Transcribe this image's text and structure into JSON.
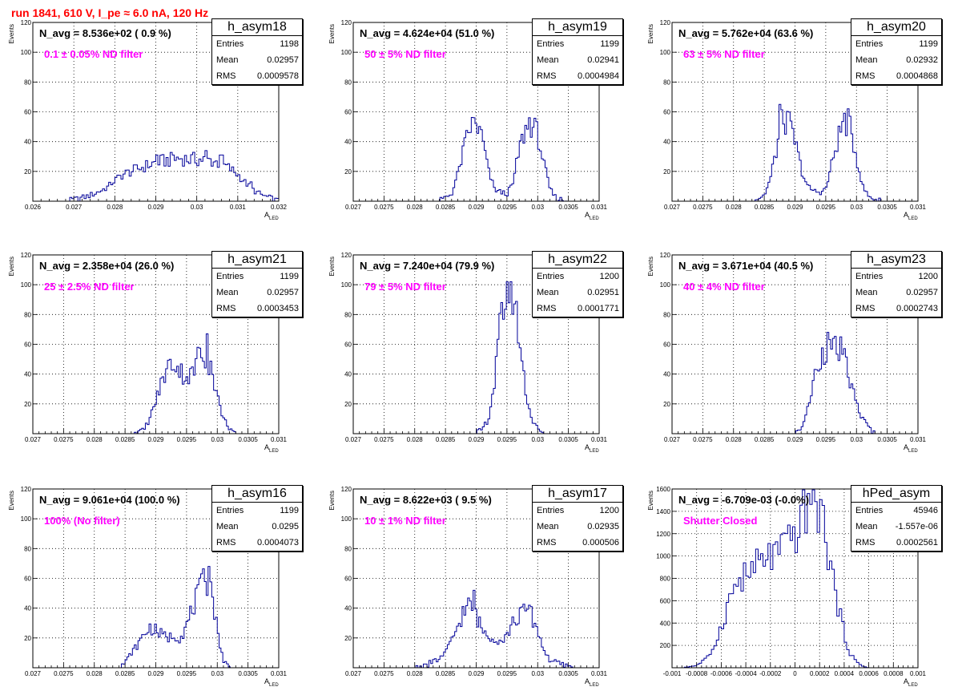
{
  "title": "run 1841,   610 V, I_pe ≈ 6.0 nA, 120 Hz",
  "axis": {
    "ylabel": "Events",
    "xlabel": "A",
    "xlabel_sub": "LED"
  },
  "stat_labels": {
    "entries": "Entries",
    "mean": "Mean",
    "rms": "RMS"
  },
  "colors": {
    "title": "#ff0000",
    "histogram": "#000099",
    "annotation": "#ff00ff",
    "grid": "#000000"
  },
  "panels": [
    {
      "name": "h_asym18",
      "navg": "N_avg = 8.536e+02 ( 0.9 %)",
      "filter": "0.1 ± 0.05% ND filter",
      "entries": "1198",
      "mean": "0.02957",
      "rms": "0.0009578"
    },
    {
      "name": "h_asym19",
      "navg": "N_avg = 4.624e+04 (51.0 %)",
      "filter": "50 ± 5% ND filter",
      "entries": "1199",
      "mean": "0.02941",
      "rms": "0.0004984"
    },
    {
      "name": "h_asym20",
      "navg": "N_avg = 5.762e+04 (63.6 %)",
      "filter": "63 ± 5% ND filter",
      "entries": "1199",
      "mean": "0.02932",
      "rms": "0.0004868"
    },
    {
      "name": "h_asym21",
      "navg": "N_avg = 2.358e+04 (26.0 %)",
      "filter": "25 ± 2.5% ND filter",
      "entries": "1199",
      "mean": "0.02957",
      "rms": "0.0003453"
    },
    {
      "name": "h_asym22",
      "navg": "N_avg = 7.240e+04 (79.9 %)",
      "filter": "79 ± 5% ND filter",
      "entries": "1200",
      "mean": "0.02951",
      "rms": "0.0001771"
    },
    {
      "name": "h_asym23",
      "navg": "N_avg = 3.671e+04 (40.5 %)",
      "filter": "40 ± 4% ND filter",
      "entries": "1200",
      "mean": "0.02957",
      "rms": "0.0002743"
    },
    {
      "name": "h_asym16",
      "navg": "N_avg = 9.061e+04 (100.0 %)",
      "filter": "100% (No filter)",
      "entries": "1199",
      "mean": "0.0295",
      "rms": "0.0004073"
    },
    {
      "name": "h_asym17",
      "navg": "N_avg = 8.622e+03 ( 9.5 %)",
      "filter": "10 ± 1% ND filter",
      "entries": "1200",
      "mean": "0.02935",
      "rms": "0.000506"
    },
    {
      "name": "hPed_asym",
      "navg": "N_avg = -6.709e-03 (-0.0%)",
      "filter": "Shutter Closed",
      "entries": "45946",
      "mean": "-1.557e-06",
      "rms": "0.0002561"
    }
  ],
  "chart_data": [
    {
      "type": "histogram",
      "name": "h_asym18",
      "xlim": [
        0.026,
        0.032
      ],
      "ylim": [
        0,
        120
      ],
      "xticks": [
        "0.026",
        "0.027",
        "0.028",
        "0.029",
        "0.03",
        "0.031",
        "0.032"
      ],
      "xtick_values": [
        0.026,
        0.027,
        0.028,
        0.029,
        0.03,
        0.031,
        0.032
      ],
      "yticks": [
        "20",
        "40",
        "60",
        "80",
        "100",
        "120"
      ],
      "ytick_values": [
        20,
        40,
        60,
        80,
        100,
        120
      ],
      "bin_width": 5e-05,
      "points": [
        [
          0.0268,
          0
        ],
        [
          0.027,
          1
        ],
        [
          0.0273,
          3
        ],
        [
          0.0275,
          5
        ],
        [
          0.0278,
          9
        ],
        [
          0.028,
          14
        ],
        [
          0.0282,
          18
        ],
        [
          0.0284,
          20
        ],
        [
          0.0286,
          22
        ],
        [
          0.0288,
          24
        ],
        [
          0.029,
          26
        ],
        [
          0.0292,
          27
        ],
        [
          0.0294,
          28
        ],
        [
          0.0296,
          29
        ],
        [
          0.0298,
          28
        ],
        [
          0.03,
          28
        ],
        [
          0.0302,
          28
        ],
        [
          0.0304,
          27
        ],
        [
          0.0306,
          25
        ],
        [
          0.0308,
          22
        ],
        [
          0.031,
          18
        ],
        [
          0.0312,
          12
        ],
        [
          0.0314,
          7
        ],
        [
          0.0316,
          4
        ],
        [
          0.0318,
          2
        ],
        [
          0.032,
          0
        ]
      ],
      "spikes": {
        "0.0302": 34,
        "0.0294": 31,
        "0.0290": 31,
        "0.0306": 31,
        "0.0313": 13
      }
    },
    {
      "type": "histogram",
      "name": "h_asym19",
      "xlim": [
        0.027,
        0.031
      ],
      "ylim": [
        0,
        120
      ],
      "xticks": [
        "0.027",
        "0.0275",
        "0.028",
        "0.0285",
        "0.029",
        "0.0295",
        "0.03",
        "0.0305",
        "0.031"
      ],
      "xtick_values": [
        0.027,
        0.0275,
        0.028,
        0.0285,
        0.029,
        0.0295,
        0.03,
        0.0305,
        0.031
      ],
      "yticks": [
        "20",
        "40",
        "60",
        "80",
        "100",
        "120"
      ],
      "ytick_values": [
        20,
        40,
        60,
        80,
        100,
        120
      ],
      "bin_width": 3e-05,
      "points": [
        [
          0.0284,
          0
        ],
        [
          0.0286,
          5
        ],
        [
          0.0287,
          18
        ],
        [
          0.0288,
          35
        ],
        [
          0.0289,
          50
        ],
        [
          0.029,
          52
        ],
        [
          0.0291,
          42
        ],
        [
          0.0292,
          20
        ],
        [
          0.0293,
          8
        ],
        [
          0.0294,
          6
        ],
        [
          0.0295,
          5
        ],
        [
          0.0296,
          12
        ],
        [
          0.0297,
          35
        ],
        [
          0.0298,
          48
        ],
        [
          0.0299,
          52
        ],
        [
          0.03,
          45
        ],
        [
          0.0301,
          25
        ],
        [
          0.0302,
          8
        ],
        [
          0.0303,
          2
        ],
        [
          0.0305,
          0
        ]
      ],
      "spikes": {
        "0.02895": 56,
        "0.02985": 56
      }
    },
    {
      "type": "histogram",
      "name": "h_asym20",
      "xlim": [
        0.027,
        0.031
      ],
      "ylim": [
        0,
        120
      ],
      "xticks": [
        "0.027",
        "0.0275",
        "0.028",
        "0.0285",
        "0.029",
        "0.0295",
        "0.03",
        "0.0305",
        "0.031"
      ],
      "xtick_values": [
        0.027,
        0.0275,
        0.028,
        0.0285,
        0.029,
        0.0295,
        0.03,
        0.0305,
        0.031
      ],
      "yticks": [
        "20",
        "40",
        "60",
        "80",
        "100",
        "120"
      ],
      "ytick_values": [
        20,
        40,
        60,
        80,
        100,
        120
      ],
      "bin_width": 3e-05,
      "points": [
        [
          0.0283,
          0
        ],
        [
          0.0285,
          4
        ],
        [
          0.0286,
          15
        ],
        [
          0.0287,
          35
        ],
        [
          0.0288,
          55
        ],
        [
          0.0289,
          52
        ],
        [
          0.029,
          40
        ],
        [
          0.0291,
          22
        ],
        [
          0.0292,
          10
        ],
        [
          0.0293,
          7
        ],
        [
          0.0294,
          6
        ],
        [
          0.0295,
          8
        ],
        [
          0.0296,
          25
        ],
        [
          0.0297,
          42
        ],
        [
          0.0298,
          55
        ],
        [
          0.0299,
          48
        ],
        [
          0.03,
          30
        ],
        [
          0.0301,
          10
        ],
        [
          0.0302,
          3
        ],
        [
          0.0304,
          0
        ]
      ],
      "spikes": {
        "0.02875": 65,
        "0.02985": 62
      }
    },
    {
      "type": "histogram",
      "name": "h_asym21",
      "xlim": [
        0.027,
        0.031
      ],
      "ylim": [
        0,
        120
      ],
      "xticks": [
        "0.027",
        "0.0275",
        "0.028",
        "0.0285",
        "0.029",
        "0.0295",
        "0.03",
        "0.0305",
        "0.031"
      ],
      "xtick_values": [
        0.027,
        0.0275,
        0.028,
        0.0285,
        0.029,
        0.0295,
        0.03,
        0.0305,
        0.031
      ],
      "yticks": [
        "20",
        "40",
        "60",
        "80",
        "100",
        "120"
      ],
      "ytick_values": [
        20,
        40,
        60,
        80,
        100,
        120
      ],
      "bin_width": 3e-05,
      "points": [
        [
          0.0286,
          0
        ],
        [
          0.0288,
          2
        ],
        [
          0.0289,
          10
        ],
        [
          0.029,
          22
        ],
        [
          0.0291,
          35
        ],
        [
          0.0292,
          45
        ],
        [
          0.0293,
          48
        ],
        [
          0.0294,
          42
        ],
        [
          0.0295,
          38
        ],
        [
          0.0296,
          40
        ],
        [
          0.0297,
          50
        ],
        [
          0.0298,
          52
        ],
        [
          0.0299,
          45
        ],
        [
          0.03,
          25
        ],
        [
          0.0301,
          10
        ],
        [
          0.0302,
          4
        ],
        [
          0.0303,
          0
        ]
      ],
      "spikes": {
        "0.02982": 67,
        "0.02968": 58
      }
    },
    {
      "type": "histogram",
      "name": "h_asym22",
      "xlim": [
        0.027,
        0.031
      ],
      "ylim": [
        0,
        120
      ],
      "xticks": [
        "0.027",
        "0.0275",
        "0.028",
        "0.0285",
        "0.029",
        "0.0295",
        "0.03",
        "0.0305",
        "0.031"
      ],
      "xtick_values": [
        0.027,
        0.0275,
        0.028,
        0.0285,
        0.029,
        0.0295,
        0.03,
        0.0305,
        0.031
      ],
      "yticks": [
        "20",
        "40",
        "60",
        "80",
        "100",
        "120"
      ],
      "ytick_values": [
        20,
        40,
        60,
        80,
        100,
        120
      ],
      "bin_width": 3e-05,
      "points": [
        [
          0.029,
          0
        ],
        [
          0.0291,
          3
        ],
        [
          0.0292,
          10
        ],
        [
          0.0293,
          35
        ],
        [
          0.0294,
          75
        ],
        [
          0.0295,
          98
        ],
        [
          0.0296,
          95
        ],
        [
          0.0297,
          65
        ],
        [
          0.0298,
          30
        ],
        [
          0.0299,
          10
        ],
        [
          0.03,
          3
        ],
        [
          0.0301,
          0
        ]
      ],
      "spikes": {
        "0.02955": 102
      }
    },
    {
      "type": "histogram",
      "name": "h_asym23",
      "xlim": [
        0.027,
        0.031
      ],
      "ylim": [
        0,
        120
      ],
      "xticks": [
        "0.027",
        "0.0275",
        "0.028",
        "0.0285",
        "0.029",
        "0.0295",
        "0.03",
        "0.0305",
        "0.031"
      ],
      "xtick_values": [
        0.027,
        0.0275,
        0.028,
        0.0285,
        0.029,
        0.0295,
        0.03,
        0.0305,
        0.031
      ],
      "yticks": [
        "20",
        "40",
        "60",
        "80",
        "100",
        "120"
      ],
      "ytick_values": [
        20,
        40,
        60,
        80,
        100,
        120
      ],
      "bin_width": 3e-05,
      "points": [
        [
          0.029,
          0
        ],
        [
          0.0291,
          4
        ],
        [
          0.0292,
          15
        ],
        [
          0.0293,
          35
        ],
        [
          0.0294,
          50
        ],
        [
          0.0295,
          58
        ],
        [
          0.0296,
          55
        ],
        [
          0.0297,
          58
        ],
        [
          0.0298,
          50
        ],
        [
          0.0299,
          35
        ],
        [
          0.03,
          20
        ],
        [
          0.0301,
          10
        ],
        [
          0.0302,
          4
        ],
        [
          0.0303,
          0
        ]
      ],
      "spikes": {
        "0.02952": 68,
        "0.02975": 65
      }
    },
    {
      "type": "histogram",
      "name": "h_asym16",
      "xlim": [
        0.027,
        0.031
      ],
      "ylim": [
        0,
        120
      ],
      "xticks": [
        "0.027",
        "0.0275",
        "0.028",
        "0.0285",
        "0.029",
        "0.0295",
        "0.03",
        "0.0305",
        "0.031"
      ],
      "xtick_values": [
        0.027,
        0.0275,
        0.028,
        0.0285,
        0.029,
        0.0295,
        0.03,
        0.0305,
        0.031
      ],
      "yticks": [
        "20",
        "40",
        "60",
        "80",
        "100",
        "120"
      ],
      "ytick_values": [
        20,
        40,
        60,
        80,
        100,
        120
      ],
      "bin_width": 3e-05,
      "points": [
        [
          0.0283,
          0
        ],
        [
          0.0285,
          3
        ],
        [
          0.0286,
          10
        ],
        [
          0.0287,
          15
        ],
        [
          0.0288,
          22
        ],
        [
          0.0289,
          27
        ],
        [
          0.029,
          25
        ],
        [
          0.0291,
          22
        ],
        [
          0.0292,
          20
        ],
        [
          0.0293,
          22
        ],
        [
          0.0294,
          20
        ],
        [
          0.0295,
          28
        ],
        [
          0.0296,
          40
        ],
        [
          0.0297,
          50
        ],
        [
          0.0298,
          60
        ],
        [
          0.0299,
          55
        ],
        [
          0.03,
          25
        ],
        [
          0.0301,
          5
        ],
        [
          0.0302,
          0
        ]
      ],
      "spikes": {
        "0.02985": 68,
        "0.02975": 63
      }
    },
    {
      "type": "histogram",
      "name": "h_asym17",
      "xlim": [
        0.027,
        0.031
      ],
      "ylim": [
        0,
        120
      ],
      "xticks": [
        "0.027",
        "0.0275",
        "0.028",
        "0.0285",
        "0.029",
        "0.0295",
        "0.03",
        "0.0305",
        "0.031"
      ],
      "xtick_values": [
        0.027,
        0.0275,
        0.028,
        0.0285,
        0.029,
        0.0295,
        0.03,
        0.0305,
        0.031
      ],
      "yticks": [
        "20",
        "40",
        "60",
        "80",
        "100",
        "120"
      ],
      "ytick_values": [
        20,
        40,
        60,
        80,
        100,
        120
      ],
      "bin_width": 3e-05,
      "points": [
        [
          0.028,
          0
        ],
        [
          0.0282,
          2
        ],
        [
          0.0284,
          6
        ],
        [
          0.0285,
          10
        ],
        [
          0.0286,
          18
        ],
        [
          0.0287,
          28
        ],
        [
          0.0288,
          38
        ],
        [
          0.0289,
          42
        ],
        [
          0.029,
          35
        ],
        [
          0.0291,
          25
        ],
        [
          0.0292,
          22
        ],
        [
          0.0293,
          20
        ],
        [
          0.0294,
          18
        ],
        [
          0.0295,
          22
        ],
        [
          0.0296,
          30
        ],
        [
          0.0297,
          35
        ],
        [
          0.0298,
          38
        ],
        [
          0.0299,
          35
        ],
        [
          0.03,
          25
        ],
        [
          0.0301,
          12
        ],
        [
          0.0302,
          5
        ],
        [
          0.0304,
          2
        ],
        [
          0.0306,
          0
        ]
      ],
      "spikes": {
        "0.02895": 52,
        "0.02985": 42
      }
    },
    {
      "type": "histogram",
      "name": "hPed_asym",
      "xlim": [
        -0.001,
        0.001
      ],
      "ylim": [
        0,
        1600
      ],
      "xticks": [
        "-0.001",
        "-0.0008",
        "-0.0006",
        "-0.0004",
        "-0.0002",
        "0",
        "0.0002",
        "0.0004",
        "0.0006",
        "0.0008",
        "0.001"
      ],
      "xtick_values": [
        -0.001,
        -0.0008,
        -0.0006,
        -0.0004,
        -0.0002,
        0,
        0.0002,
        0.0004,
        0.0006,
        0.0008,
        0.001
      ],
      "yticks": [
        "200",
        "400",
        "600",
        "800",
        "1000",
        "1200",
        "1400",
        "1600"
      ],
      "ytick_values": [
        200,
        400,
        600,
        800,
        1000,
        1200,
        1400,
        1600
      ],
      "bin_width": 2e-05,
      "points": [
        [
          -0.00092,
          0
        ],
        [
          -0.0008,
          20
        ],
        [
          -0.0007,
          100
        ],
        [
          -0.00062,
          300
        ],
        [
          -0.00055,
          550
        ],
        [
          -0.0005,
          700
        ],
        [
          -0.00045,
          780
        ],
        [
          -0.0004,
          820
        ],
        [
          -0.00035,
          870
        ],
        [
          -0.0003,
          920
        ],
        [
          -0.00025,
          960
        ],
        [
          -0.0002,
          1000
        ],
        [
          -0.00015,
          1020
        ],
        [
          -0.0001,
          1050
        ],
        [
          -5e-05,
          1100
        ],
        [
          0.0,
          1200
        ],
        [
          5e-05,
          1300
        ],
        [
          8e-05,
          1400
        ],
        [
          0.00012,
          1470
        ],
        [
          0.00016,
          1480
        ],
        [
          0.0002,
          1420
        ],
        [
          0.00025,
          1200
        ],
        [
          0.0003,
          850
        ],
        [
          0.00035,
          550
        ],
        [
          0.0004,
          300
        ],
        [
          0.00045,
          130
        ],
        [
          0.0005,
          50
        ],
        [
          0.00055,
          15
        ],
        [
          0.0006,
          0
        ]
      ],
      "spikes": {
        "0.00012": 1560,
        "0.00018": 1580
      }
    }
  ]
}
